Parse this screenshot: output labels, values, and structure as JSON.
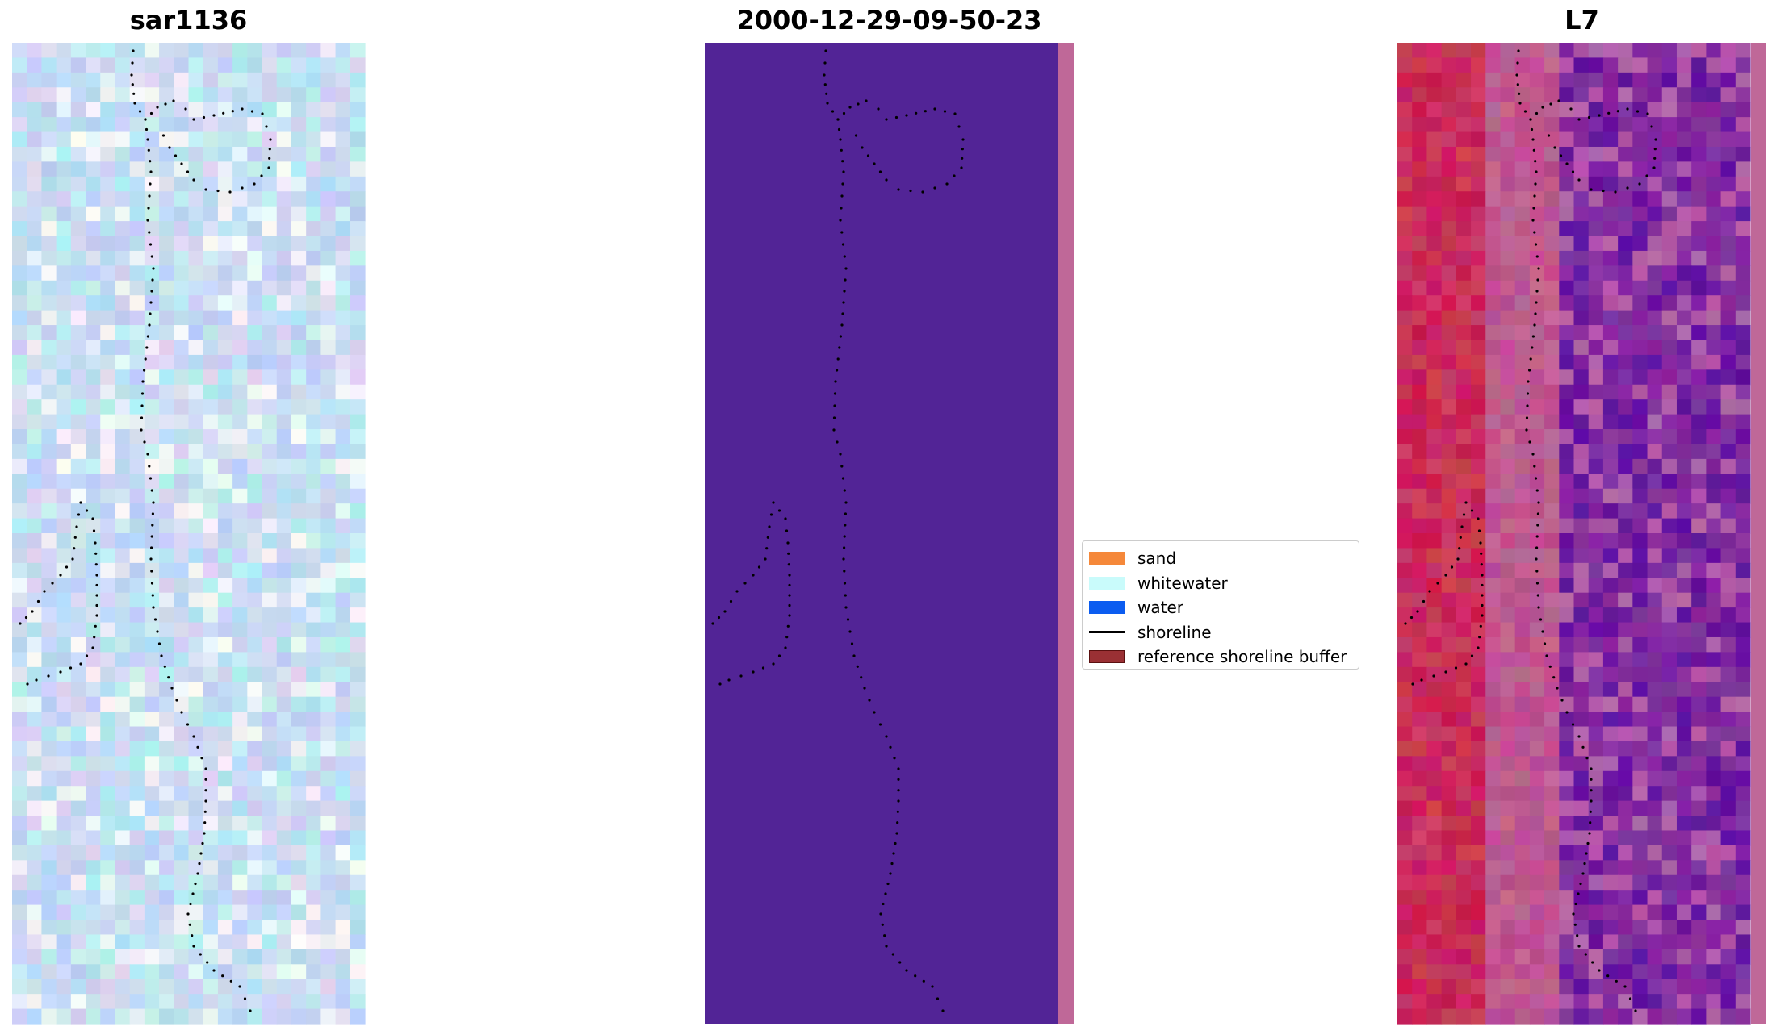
{
  "panels": [
    {
      "title": "sar1136"
    },
    {
      "title": "2000-12-29-09-50-23"
    },
    {
      "title": "L7"
    }
  ],
  "legend": {
    "items": [
      {
        "label": "sand",
        "color": "#f5883a",
        "type": "patch"
      },
      {
        "label": "whitewater",
        "color": "#c9fbfb",
        "type": "patch"
      },
      {
        "label": "water",
        "color": "#0b5cf0",
        "type": "patch"
      },
      {
        "label": "shoreline",
        "color": "#000000",
        "type": "line"
      },
      {
        "label": "reference shoreline buffer",
        "color": "#9a3034",
        "type": "patch"
      }
    ]
  },
  "colors": {
    "classification_background": "#522496",
    "classification_edge_strip": "#bf6898"
  }
}
